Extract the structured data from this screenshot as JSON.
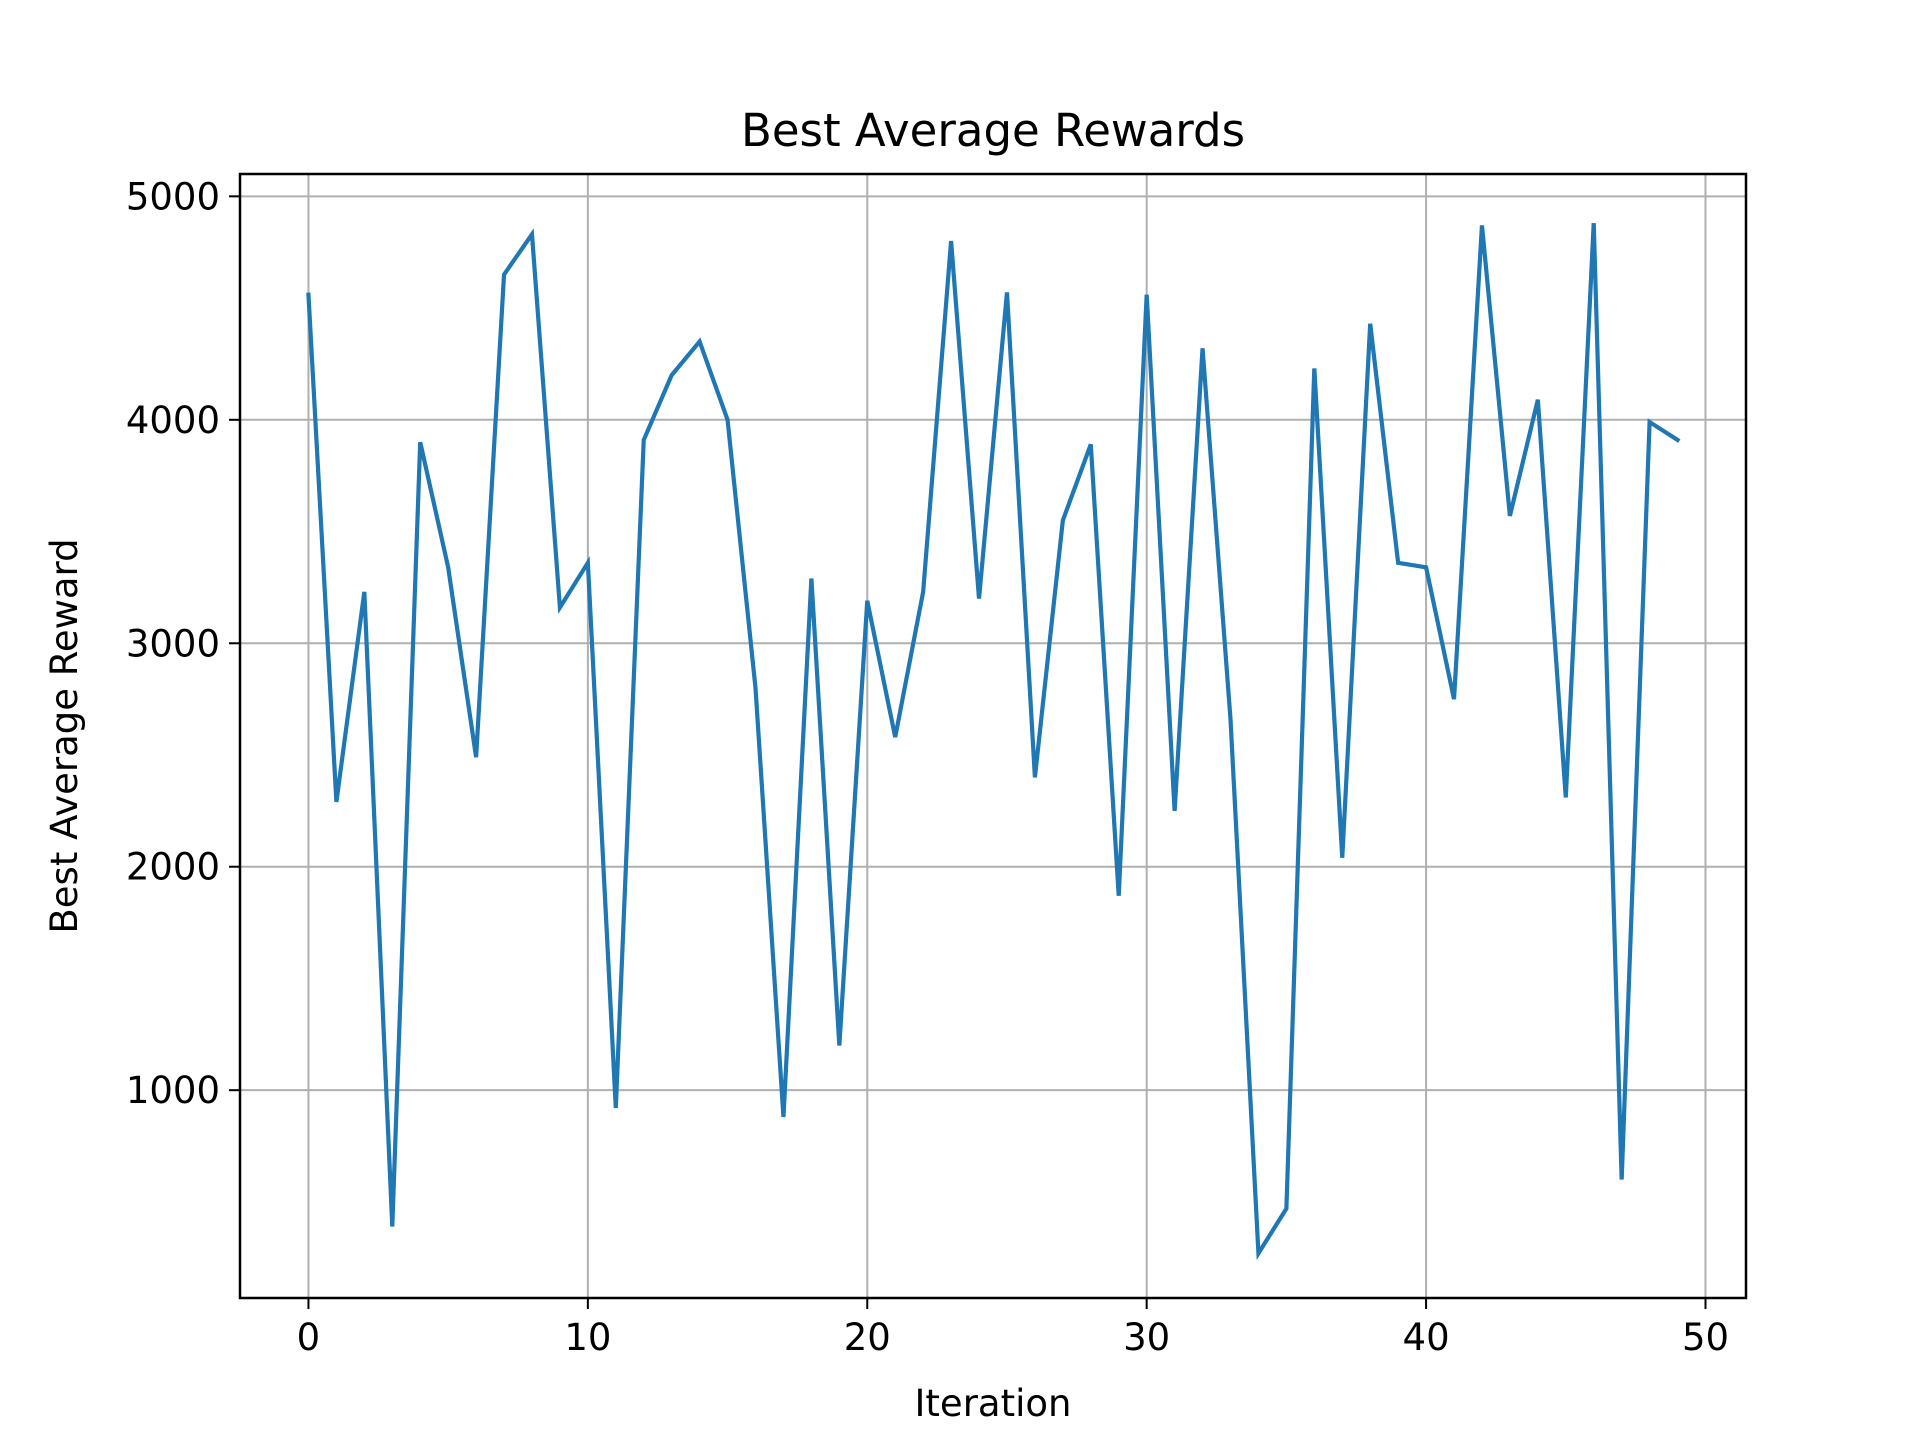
{
  "chart_data": {
    "type": "line",
    "title": "Best Average Rewards",
    "xlabel": "Iteration",
    "ylabel": "Best Average Reward",
    "xlim": [
      -2.45,
      51.45
    ],
    "ylim": [
      70,
      5100
    ],
    "xticks": [
      0,
      10,
      20,
      30,
      40,
      50
    ],
    "yticks": [
      1000,
      2000,
      3000,
      4000,
      5000
    ],
    "xtick_labels": [
      "0",
      "10",
      "20",
      "30",
      "40",
      "50"
    ],
    "ytick_labels": [
      "1000",
      "2000",
      "3000",
      "4000",
      "5000"
    ],
    "grid": true,
    "legend": "none",
    "series": [
      {
        "color": "#1f77b4",
        "x": [
          0,
          1,
          2,
          3,
          4,
          5,
          6,
          7,
          8,
          9,
          10,
          11,
          12,
          13,
          14,
          15,
          16,
          17,
          18,
          19,
          20,
          21,
          22,
          23,
          24,
          25,
          26,
          27,
          28,
          29,
          30,
          31,
          32,
          33,
          34,
          35,
          36,
          37,
          38,
          39,
          40,
          41,
          42,
          43,
          44,
          45,
          46,
          47,
          48,
          49
        ],
        "values": [
          4560,
          2290,
          3230,
          390,
          3900,
          3340,
          2490,
          4650,
          4830,
          3160,
          3360,
          920,
          3910,
          4200,
          4350,
          4000,
          2800,
          880,
          3290,
          1200,
          3190,
          2580,
          3230,
          4800,
          3200,
          4570,
          2400,
          3550,
          3890,
          1870,
          4560,
          2250,
          4320,
          2660,
          270,
          470,
          4230,
          2040,
          4430,
          3360,
          3340,
          2750,
          4870,
          3570,
          4090,
          2310,
          4880,
          600,
          3990,
          3910
        ]
      }
    ]
  },
  "colors": {
    "series": "#1f77b4",
    "grid": "#b0b0b0",
    "axes": "#000000",
    "background": "#ffffff"
  }
}
